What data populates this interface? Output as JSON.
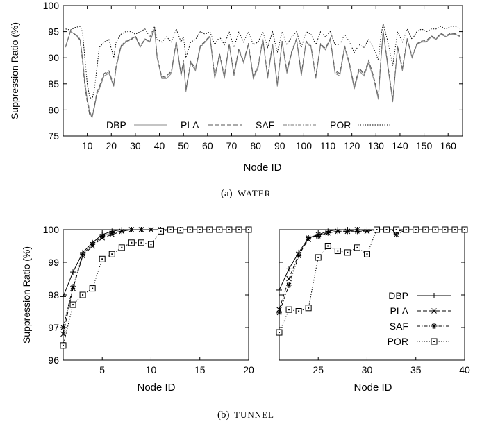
{
  "figure": {
    "caption_a_tag": "(a)",
    "caption_a_name": "WATER",
    "caption_b_tag": "(b)",
    "caption_b_name": "TUNNEL"
  },
  "chart_data": [
    {
      "type": "line",
      "panel": "a",
      "xlabel": "Node ID",
      "ylabel": "Suppression Ratio (%)",
      "xlim": [
        0,
        166
      ],
      "ylim": [
        75,
        100
      ],
      "xticks": [
        10,
        20,
        30,
        40,
        50,
        60,
        70,
        80,
        90,
        100,
        110,
        120,
        130,
        140,
        150,
        160
      ],
      "yticks": [
        75,
        80,
        85,
        90,
        95,
        100
      ],
      "legend_position": "inside-bottom-horizontal",
      "series": [
        {
          "name": "DBP",
          "color": "#888888",
          "style": "solid"
        },
        {
          "name": "PLA",
          "color": "#555555",
          "style": "dashed"
        },
        {
          "name": "SAF",
          "color": "#777777",
          "style": "dash-dot"
        },
        {
          "name": "POR",
          "color": "#000000",
          "style": "dotted"
        }
      ],
      "x": [
        1,
        3,
        5,
        7,
        8,
        9,
        10,
        11,
        12,
        13,
        14,
        15,
        17,
        19,
        21,
        22,
        24,
        26,
        28,
        30,
        32,
        34,
        36,
        38,
        39,
        41,
        43,
        45,
        47,
        49,
        50,
        51,
        53,
        55,
        57,
        59,
        61,
        63,
        65,
        67,
        69,
        71,
        73,
        75,
        77,
        79,
        81,
        83,
        85,
        87,
        89,
        91,
        93,
        95,
        97,
        99,
        101,
        103,
        105,
        107,
        109,
        111,
        113,
        115,
        117,
        119,
        121,
        123,
        125,
        127,
        129,
        131,
        132,
        133,
        135,
        137,
        139,
        141,
        143,
        145,
        147,
        149,
        151,
        153,
        155,
        157,
        159,
        161,
        163,
        165
      ],
      "values_dbp": [
        92.0,
        95.0,
        94.5,
        93.5,
        90.0,
        85.0,
        82.0,
        79.5,
        78.5,
        80.5,
        83.0,
        84.0,
        86.5,
        87.0,
        84.5,
        88.0,
        92.0,
        93.0,
        93.5,
        94.0,
        92.0,
        93.5,
        93.0,
        95.5,
        90.0,
        86.0,
        86.0,
        87.0,
        93.0,
        86.5,
        89.0,
        83.5,
        89.0,
        87.5,
        92.0,
        93.0,
        94.0,
        86.0,
        90.5,
        86.0,
        92.5,
        86.5,
        91.5,
        89.0,
        92.5,
        86.0,
        88.0,
        93.5,
        86.0,
        92.5,
        84.5,
        93.0,
        87.0,
        91.0,
        93.5,
        86.5,
        93.0,
        92.0,
        86.0,
        92.5,
        91.5,
        93.5,
        87.0,
        86.5,
        92.0,
        88.5,
        84.0,
        87.5,
        86.5,
        89.0,
        86.0,
        82.0,
        89.0,
        95.0,
        88.0,
        81.5,
        92.0,
        87.5,
        93.5,
        90.0,
        92.5,
        93.0,
        93.0,
        94.0,
        93.5,
        94.5,
        94.0,
        94.5,
        94.5,
        94.0
      ],
      "values_pla": [
        92.2,
        95.1,
        94.4,
        93.4,
        89.5,
        84.5,
        81.5,
        79.0,
        78.8,
        80.8,
        83.5,
        84.5,
        87.0,
        87.5,
        84.8,
        88.5,
        92.3,
        93.2,
        93.3,
        94.2,
        92.3,
        93.6,
        93.2,
        95.7,
        90.5,
        86.3,
        86.5,
        87.5,
        93.2,
        86.8,
        89.5,
        84.0,
        89.3,
        88.0,
        92.3,
        93.2,
        94.2,
        86.5,
        90.8,
        86.5,
        92.7,
        87.0,
        91.8,
        89.3,
        92.8,
        86.5,
        88.5,
        93.7,
        86.5,
        92.7,
        85.0,
        93.2,
        87.5,
        91.3,
        93.7,
        87.0,
        93.2,
        92.3,
        86.5,
        92.7,
        91.8,
        93.7,
        87.5,
        87.0,
        92.3,
        89.0,
        84.5,
        88.0,
        87.0,
        89.5,
        86.5,
        82.5,
        89.5,
        95.2,
        88.5,
        82.0,
        92.3,
        88.0,
        93.7,
        90.3,
        92.7,
        93.2,
        93.3,
        94.2,
        93.7,
        94.7,
        94.2,
        94.7,
        94.6,
        94.2
      ],
      "values_saf": [
        92.1,
        95.0,
        94.6,
        93.6,
        90.3,
        85.3,
        82.3,
        79.8,
        78.6,
        80.6,
        83.3,
        84.3,
        86.8,
        87.3,
        84.6,
        88.3,
        92.1,
        93.1,
        93.6,
        94.1,
        92.1,
        93.5,
        93.1,
        95.6,
        90.3,
        86.1,
        86.3,
        87.3,
        93.1,
        86.6,
        89.3,
        83.8,
        89.1,
        87.8,
        92.1,
        93.1,
        94.1,
        86.3,
        90.6,
        86.3,
        92.6,
        86.8,
        91.6,
        89.1,
        92.6,
        86.3,
        88.3,
        93.6,
        86.3,
        92.6,
        84.8,
        93.1,
        87.3,
        91.1,
        93.6,
        86.8,
        93.1,
        92.1,
        86.3,
        92.6,
        91.6,
        93.6,
        87.3,
        86.8,
        92.1,
        88.8,
        84.3,
        87.8,
        86.8,
        89.3,
        86.3,
        82.3,
        89.3,
        95.1,
        88.3,
        81.8,
        92.1,
        87.8,
        93.6,
        90.1,
        92.6,
        93.1,
        93.1,
        94.1,
        93.6,
        94.6,
        94.1,
        94.6,
        94.5,
        94.1
      ],
      "values_por": [
        95.5,
        95.3,
        95.8,
        96.0,
        95.0,
        90.0,
        85.0,
        82.5,
        82.0,
        84.0,
        88.0,
        92.0,
        93.0,
        93.5,
        90.0,
        93.0,
        94.5,
        95.0,
        95.0,
        94.5,
        95.0,
        95.5,
        94.0,
        96.0,
        93.5,
        93.0,
        94.0,
        93.0,
        95.5,
        93.0,
        94.0,
        90.0,
        93.0,
        93.5,
        95.0,
        94.5,
        95.0,
        92.5,
        94.0,
        92.5,
        95.0,
        92.0,
        95.0,
        93.0,
        95.0,
        92.5,
        93.0,
        95.0,
        92.0,
        95.0,
        91.0,
        95.0,
        92.5,
        94.0,
        95.0,
        92.0,
        95.0,
        94.5,
        92.5,
        95.0,
        94.0,
        95.0,
        92.5,
        92.5,
        94.5,
        93.0,
        91.0,
        92.5,
        92.0,
        93.5,
        92.0,
        89.5,
        94.0,
        96.5,
        93.0,
        88.5,
        95.0,
        93.0,
        95.5,
        93.5,
        95.0,
        95.5,
        95.0,
        95.5,
        95.5,
        96.0,
        95.5,
        96.0,
        96.0,
        95.5
      ]
    },
    {
      "type": "line",
      "panel": "b-left",
      "xlabel": "Node ID",
      "ylabel": "Suppression Ratio (%)",
      "xlim": [
        1,
        20
      ],
      "ylim": [
        96,
        100
      ],
      "xticks": [
        5,
        10,
        15,
        20
      ],
      "yticks": [
        96,
        97,
        98,
        99,
        100
      ],
      "x": [
        1,
        2,
        3,
        4,
        5,
        6,
        7,
        8,
        9,
        10,
        11,
        12,
        13,
        14,
        15,
        16,
        17,
        18,
        19,
        20
      ],
      "series": [
        {
          "name": "DBP",
          "marker": "plus",
          "style": "solid",
          "values": [
            97.95,
            98.7,
            99.3,
            99.6,
            99.85,
            99.95,
            100.0,
            100.0,
            100.0,
            100.0,
            100.0,
            100.0,
            100.0,
            100.0,
            100.0,
            100.0,
            100.0,
            100.0,
            100.0,
            100.0
          ]
        },
        {
          "name": "PLA",
          "marker": "x",
          "style": "dashed",
          "values": [
            96.8,
            98.2,
            99.2,
            99.5,
            99.75,
            99.85,
            99.95,
            100.0,
            100.0,
            100.0,
            100.0,
            100.0,
            100.0,
            100.0,
            100.0,
            100.0,
            100.0,
            100.0,
            100.0,
            100.0
          ]
        },
        {
          "name": "SAF",
          "marker": "star",
          "style": "dash-dot",
          "values": [
            97.0,
            98.25,
            99.25,
            99.55,
            99.8,
            99.9,
            99.95,
            100.0,
            100.0,
            100.0,
            100.0,
            100.0,
            100.0,
            100.0,
            100.0,
            100.0,
            100.0,
            100.0,
            100.0,
            100.0
          ]
        },
        {
          "name": "POR",
          "marker": "square-dot",
          "style": "dotted",
          "values": [
            96.45,
            97.7,
            98.0,
            98.2,
            99.1,
            99.25,
            99.45,
            99.6,
            99.6,
            99.55,
            99.95,
            100.0,
            99.98,
            100.0,
            100.0,
            100.0,
            100.0,
            100.0,
            100.0,
            100.0
          ]
        }
      ]
    },
    {
      "type": "line",
      "panel": "b-right",
      "xlabel": "Node ID",
      "xlim": [
        21,
        40
      ],
      "ylim": [
        96,
        100
      ],
      "xticks": [
        25,
        30,
        35,
        40
      ],
      "legend_position": "right-middle",
      "x": [
        21,
        22,
        23,
        24,
        25,
        26,
        27,
        28,
        29,
        30,
        31,
        32,
        33,
        34,
        35,
        36,
        37,
        38,
        39,
        40
      ],
      "series": [
        {
          "name": "DBP",
          "marker": "plus",
          "style": "solid",
          "values": [
            98.15,
            98.8,
            99.3,
            99.75,
            99.85,
            99.95,
            100.0,
            100.0,
            100.0,
            100.0,
            100.0,
            100.0,
            100.0,
            100.0,
            100.0,
            100.0,
            100.0,
            100.0,
            100.0,
            100.0
          ]
        },
        {
          "name": "PLA",
          "marker": "x",
          "style": "dashed",
          "values": [
            97.55,
            98.5,
            99.25,
            99.7,
            99.85,
            99.9,
            99.95,
            99.95,
            100.0,
            99.95,
            100.0,
            100.0,
            99.95,
            100.0,
            100.0,
            100.0,
            100.0,
            100.0,
            100.0,
            100.0
          ]
        },
        {
          "name": "SAF",
          "marker": "star",
          "style": "dash-dot",
          "values": [
            97.45,
            98.3,
            99.2,
            99.75,
            99.8,
            99.9,
            99.95,
            99.95,
            99.95,
            99.95,
            100.0,
            100.0,
            99.85,
            100.0,
            100.0,
            100.0,
            100.0,
            100.0,
            100.0,
            100.0
          ]
        },
        {
          "name": "POR",
          "marker": "square-dot",
          "style": "dotted",
          "values": [
            96.85,
            97.55,
            97.5,
            97.6,
            99.15,
            99.5,
            99.35,
            99.3,
            99.45,
            99.25,
            100.0,
            100.0,
            100.0,
            100.0,
            100.0,
            100.0,
            100.0,
            100.0,
            100.0,
            100.0
          ]
        }
      ]
    }
  ]
}
